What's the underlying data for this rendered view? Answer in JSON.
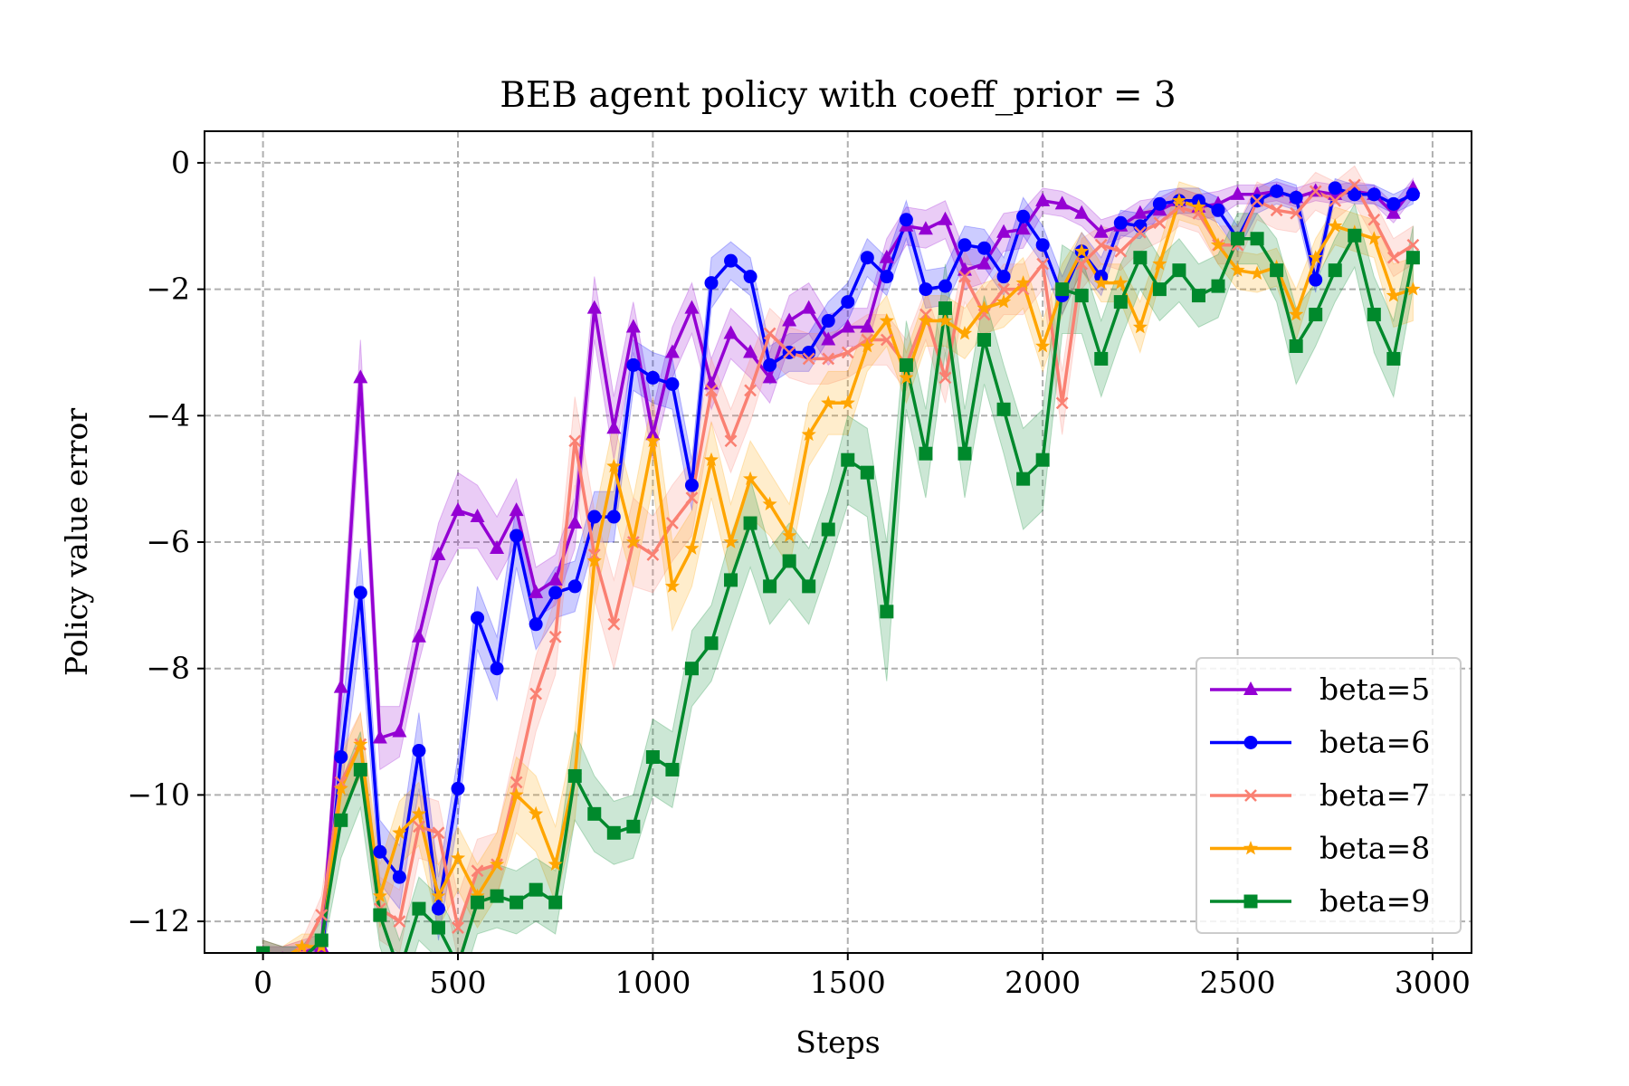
{
  "chart_data": {
    "type": "line",
    "title": "BEB agent policy with coeff_prior = 3",
    "xlabel": "Steps",
    "ylabel": "Policy value error",
    "xlim": [
      -150,
      3100
    ],
    "ylim": [
      -12.5,
      0.5
    ],
    "xticks": [
      0,
      500,
      1000,
      1500,
      2000,
      2500,
      3000
    ],
    "xtick_labels": [
      "0",
      "500",
      "1000",
      "1500",
      "2000",
      "2500",
      "3000"
    ],
    "yticks": [
      0,
      -2,
      -4,
      -6,
      -8,
      -10,
      -12
    ],
    "ytick_labels": [
      "0",
      "−2",
      "−4",
      "−6",
      "−8",
      "−10",
      "−12"
    ],
    "grid": true,
    "legend_position": "lower right",
    "x": [
      0,
      50,
      100,
      150,
      200,
      250,
      300,
      350,
      400,
      450,
      500,
      550,
      600,
      650,
      700,
      750,
      800,
      850,
      900,
      950,
      1000,
      1050,
      1100,
      1150,
      1200,
      1250,
      1300,
      1350,
      1400,
      1450,
      1500,
      1550,
      1600,
      1650,
      1700,
      1750,
      1800,
      1850,
      1900,
      1950,
      2000,
      2050,
      2100,
      2150,
      2200,
      2250,
      2300,
      2350,
      2400,
      2450,
      2500,
      2550,
      2600,
      2650,
      2700,
      2750,
      2800,
      2850,
      2900,
      2950
    ],
    "series": [
      {
        "name": "beta=5",
        "color": "#9400d3",
        "marker": "triangle",
        "values": [
          -12.5,
          -12.6,
          -12.5,
          -12.4,
          -8.3,
          -3.4,
          -9.1,
          -9.0,
          -7.5,
          -6.2,
          -5.5,
          -5.6,
          -6.1,
          -5.5,
          -6.8,
          -6.6,
          -5.7,
          -2.3,
          -4.2,
          -2.6,
          -4.3,
          -3.0,
          -2.3,
          -3.5,
          -2.7,
          -3.0,
          -3.4,
          -2.5,
          -2.3,
          -2.8,
          -2.6,
          -2.6,
          -1.5,
          -1.0,
          -1.05,
          -0.9,
          -1.7,
          -1.6,
          -1.1,
          -1.05,
          -0.6,
          -0.65,
          -0.8,
          -1.1,
          -1.0,
          -0.8,
          -0.75,
          -0.6,
          -0.7,
          -0.65,
          -0.5,
          -0.5,
          -0.45,
          -0.55,
          -0.45,
          -0.5,
          -0.45,
          -0.5,
          -0.8,
          -0.4
        ],
        "spread": [
          0.2,
          0.2,
          0.2,
          0.2,
          0.5,
          0.6,
          0.5,
          0.4,
          0.4,
          0.5,
          0.6,
          0.5,
          0.5,
          0.5,
          0.4,
          0.4,
          0.4,
          0.5,
          0.5,
          0.4,
          0.4,
          0.4,
          0.4,
          0.4,
          0.4,
          0.4,
          0.4,
          0.4,
          0.4,
          0.4,
          0.3,
          0.3,
          0.3,
          0.3,
          0.3,
          0.3,
          0.3,
          0.3,
          0.3,
          0.3,
          0.2,
          0.2,
          0.2,
          0.2,
          0.2,
          0.2,
          0.2,
          0.2,
          0.2,
          0.2,
          0.15,
          0.15,
          0.15,
          0.15,
          0.15,
          0.15,
          0.15,
          0.15,
          0.15,
          0.15
        ]
      },
      {
        "name": "beta=6",
        "color": "#0000ff",
        "marker": "circle",
        "values": [
          -12.6,
          -12.6,
          -12.6,
          -12.6,
          -9.4,
          -6.8,
          -10.9,
          -11.3,
          -9.3,
          -11.8,
          -9.9,
          -7.2,
          -8.0,
          -5.9,
          -7.3,
          -6.8,
          -6.7,
          -5.6,
          -5.6,
          -3.2,
          -3.4,
          -3.5,
          -5.1,
          -1.9,
          -1.55,
          -1.8,
          -3.2,
          -3.0,
          -3.0,
          -2.5,
          -2.2,
          -1.5,
          -1.8,
          -0.9,
          -2.0,
          -1.95,
          -1.3,
          -1.35,
          -1.8,
          -0.85,
          -1.3,
          -2.1,
          -1.4,
          -1.8,
          -0.95,
          -1.0,
          -0.65,
          -0.6,
          -0.6,
          -0.75,
          -1.2,
          -0.6,
          -0.45,
          -0.55,
          -1.85,
          -0.4,
          -0.5,
          -0.5,
          -0.65,
          -0.5
        ],
        "spread": [
          0.2,
          0.2,
          0.2,
          0.2,
          0.6,
          0.7,
          0.5,
          0.5,
          0.6,
          0.5,
          0.5,
          0.5,
          0.5,
          0.5,
          0.4,
          0.4,
          0.4,
          0.4,
          0.4,
          0.4,
          0.4,
          0.4,
          0.4,
          0.4,
          0.3,
          0.3,
          0.3,
          0.3,
          0.3,
          0.3,
          0.3,
          0.3,
          0.3,
          0.3,
          0.3,
          0.3,
          0.3,
          0.3,
          0.3,
          0.3,
          0.3,
          0.3,
          0.3,
          0.3,
          0.2,
          0.2,
          0.2,
          0.2,
          0.2,
          0.2,
          0.2,
          0.2,
          0.2,
          0.2,
          0.2,
          0.15,
          0.15,
          0.15,
          0.15,
          0.15
        ]
      },
      {
        "name": "beta=7",
        "color": "#fa8072",
        "marker": "x",
        "values": [
          -12.6,
          -12.6,
          -12.5,
          -11.9,
          -9.8,
          -9.2,
          -11.8,
          -12.0,
          -10.5,
          -10.6,
          -12.1,
          -11.2,
          -11.1,
          -9.8,
          -8.4,
          -7.5,
          -4.4,
          -6.2,
          -7.3,
          -6.0,
          -6.2,
          -5.7,
          -5.3,
          -3.6,
          -4.4,
          -3.6,
          -2.7,
          -3.0,
          -3.1,
          -3.1,
          -3.0,
          -2.8,
          -2.8,
          -3.2,
          -2.4,
          -3.4,
          -1.8,
          -2.4,
          -2.0,
          -2.0,
          -1.6,
          -3.8,
          -1.6,
          -1.3,
          -1.4,
          -1.1,
          -0.95,
          -0.7,
          -0.8,
          -1.3,
          -1.3,
          -0.6,
          -0.75,
          -0.8,
          -0.45,
          -0.6,
          -0.35,
          -0.9,
          -1.5,
          -1.3
        ],
        "spread": [
          0.2,
          0.2,
          0.2,
          0.3,
          0.5,
          0.5,
          0.5,
          0.5,
          0.5,
          0.5,
          0.5,
          0.5,
          0.5,
          0.6,
          0.6,
          0.6,
          0.7,
          0.7,
          0.7,
          0.7,
          0.6,
          0.6,
          0.6,
          0.5,
          0.5,
          0.5,
          0.4,
          0.4,
          0.4,
          0.4,
          0.4,
          0.4,
          0.4,
          0.4,
          0.4,
          0.4,
          0.4,
          0.4,
          0.4,
          0.4,
          0.4,
          0.5,
          0.4,
          0.3,
          0.3,
          0.3,
          0.3,
          0.3,
          0.3,
          0.3,
          0.3,
          0.3,
          0.3,
          0.3,
          0.3,
          0.3,
          0.3,
          0.3,
          0.3,
          0.3
        ]
      },
      {
        "name": "beta=8",
        "color": "#ffa500",
        "marker": "star",
        "values": [
          -12.5,
          -12.6,
          -12.4,
          -12.4,
          -9.9,
          -9.2,
          -11.6,
          -10.6,
          -10.3,
          -11.6,
          -11.0,
          -11.6,
          -11.1,
          -10.0,
          -10.3,
          -11.1,
          -9.7,
          -6.3,
          -4.8,
          -6.0,
          -4.4,
          -6.7,
          -6.1,
          -4.7,
          -6.0,
          -5.0,
          -5.4,
          -5.9,
          -4.3,
          -3.8,
          -3.8,
          -2.9,
          -2.5,
          -3.4,
          -2.5,
          -2.5,
          -2.7,
          -2.3,
          -2.2,
          -1.9,
          -2.9,
          -2.0,
          -1.4,
          -1.9,
          -1.9,
          -2.6,
          -1.6,
          -0.6,
          -0.7,
          -1.3,
          -1.7,
          -1.75,
          -1.65,
          -2.4,
          -1.5,
          -1.0,
          -1.1,
          -1.2,
          -2.1,
          -2.0
        ],
        "spread": [
          0.2,
          0.2,
          0.2,
          0.2,
          0.5,
          0.5,
          0.5,
          0.5,
          0.5,
          0.5,
          0.5,
          0.5,
          0.5,
          0.6,
          0.6,
          0.6,
          0.7,
          0.7,
          0.7,
          0.7,
          0.7,
          0.7,
          0.6,
          0.6,
          0.6,
          0.6,
          0.5,
          0.5,
          0.5,
          0.5,
          0.5,
          0.4,
          0.4,
          0.4,
          0.4,
          0.4,
          0.4,
          0.4,
          0.4,
          0.4,
          0.4,
          0.4,
          0.3,
          0.3,
          0.3,
          0.4,
          0.3,
          0.3,
          0.3,
          0.3,
          0.3,
          0.3,
          0.3,
          0.4,
          0.3,
          0.3,
          0.3,
          0.3,
          0.5,
          0.5
        ]
      },
      {
        "name": "beta=9",
        "color": "#00892c",
        "marker": "square",
        "values": [
          -12.5,
          -12.6,
          -12.6,
          -12.3,
          -10.4,
          -9.6,
          -11.9,
          -12.8,
          -11.8,
          -12.1,
          -12.7,
          -11.7,
          -11.6,
          -11.7,
          -11.5,
          -11.7,
          -9.7,
          -10.3,
          -10.6,
          -10.5,
          -9.4,
          -9.6,
          -8.0,
          -7.6,
          -6.6,
          -5.7,
          -6.7,
          -6.3,
          -6.7,
          -5.8,
          -4.7,
          -4.9,
          -7.1,
          -3.2,
          -4.6,
          -2.3,
          -4.6,
          -2.8,
          -3.9,
          -5.0,
          -4.7,
          -2.0,
          -2.1,
          -3.1,
          -2.2,
          -1.5,
          -2.0,
          -1.7,
          -2.1,
          -1.95,
          -1.2,
          -1.2,
          -1.7,
          -2.9,
          -2.4,
          -1.7,
          -1.15,
          -2.4,
          -3.1,
          -1.5
        ],
        "spread": [
          0.2,
          0.2,
          0.2,
          0.3,
          0.6,
          0.6,
          0.5,
          0.5,
          0.5,
          0.5,
          0.5,
          0.5,
          0.5,
          0.5,
          0.5,
          0.5,
          0.7,
          0.6,
          0.5,
          0.5,
          0.6,
          0.6,
          0.6,
          0.6,
          0.7,
          0.7,
          0.6,
          0.6,
          0.6,
          0.6,
          0.7,
          0.7,
          1.1,
          0.7,
          0.7,
          0.7,
          0.7,
          0.7,
          0.7,
          0.8,
          0.8,
          0.7,
          0.6,
          0.6,
          0.6,
          0.5,
          0.5,
          0.5,
          0.5,
          0.5,
          0.4,
          0.4,
          0.5,
          0.6,
          0.5,
          0.5,
          0.5,
          0.6,
          0.6,
          0.5
        ]
      }
    ]
  }
}
